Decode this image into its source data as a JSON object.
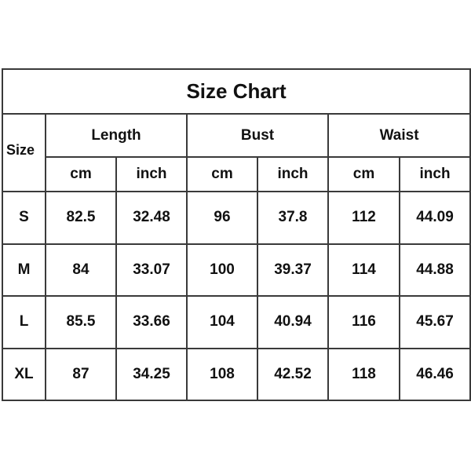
{
  "title": "Size Chart",
  "size_header": "Size",
  "groups": [
    "Length",
    "Bust",
    "Waist"
  ],
  "units": [
    "cm",
    "inch",
    "cm",
    "inch",
    "cm",
    "inch"
  ],
  "rows": [
    {
      "size": "S",
      "values": [
        "82.5",
        "32.48",
        "96",
        "37.8",
        "112",
        "44.09"
      ]
    },
    {
      "size": "M",
      "values": [
        "84",
        "33.07",
        "100",
        "39.37",
        "114",
        "44.88"
      ]
    },
    {
      "size": "L",
      "values": [
        "85.5",
        "33.66",
        "104",
        "40.94",
        "116",
        "45.67"
      ]
    },
    {
      "size": "XL",
      "values": [
        "87",
        "34.25",
        "108",
        "42.52",
        "118",
        "46.46"
      ]
    }
  ]
}
